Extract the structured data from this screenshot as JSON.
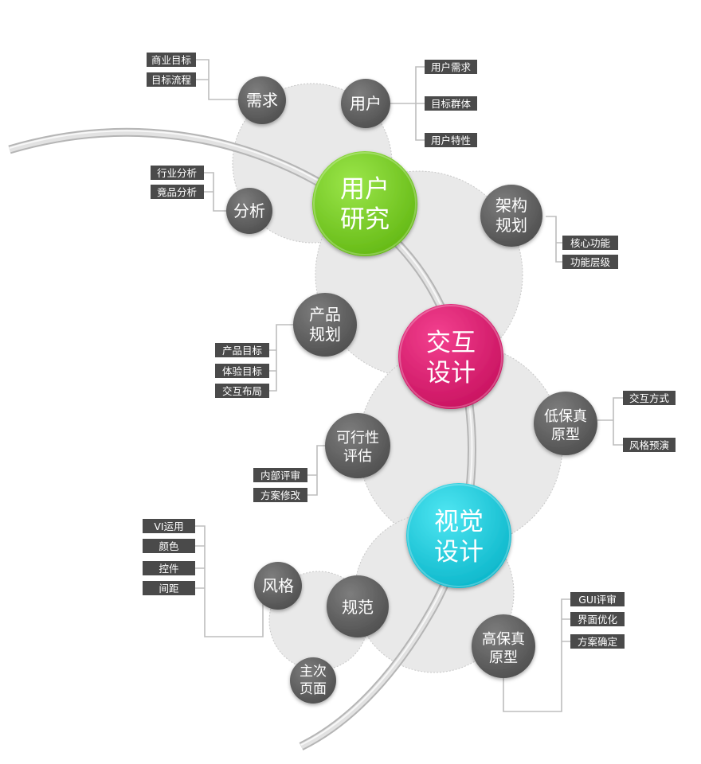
{
  "main_nodes": {
    "research": {
      "label_lines": [
        "用户",
        "研究"
      ],
      "color": "#7ed321"
    },
    "interaction": {
      "label_lines": [
        "交互",
        "设计"
      ],
      "color": "#e91e75"
    },
    "visual": {
      "label_lines": [
        "视觉",
        "设计"
      ],
      "color": "#16d3e6"
    }
  },
  "nodes": {
    "demand": {
      "label_lines": [
        "需求"
      ]
    },
    "user": {
      "label_lines": [
        "用户"
      ]
    },
    "analysis": {
      "label_lines": [
        "分析"
      ]
    },
    "architecture": {
      "label_lines": [
        "架构",
        "规划"
      ]
    },
    "product_plan": {
      "label_lines": [
        "产品",
        "规划"
      ]
    },
    "low_fi": {
      "label_lines": [
        "低保真",
        "原型"
      ]
    },
    "feasibility": {
      "label_lines": [
        "可行性",
        "评估"
      ]
    },
    "style": {
      "label_lines": [
        "风格"
      ]
    },
    "spec": {
      "label_lines": [
        "规范"
      ]
    },
    "main_page": {
      "label_lines": [
        "主次",
        "页面"
      ]
    },
    "high_fi": {
      "label_lines": [
        "高保真",
        "原型"
      ]
    }
  },
  "tags": {
    "demand": [
      "商业目标",
      "目标流程"
    ],
    "user": [
      "用户需求",
      "目标群体",
      "用户特性"
    ],
    "analysis": [
      "行业分析",
      "竟品分析"
    ],
    "architecture": [
      "核心功能",
      "功能层级"
    ],
    "product_plan": [
      "产品目标",
      "体验目标",
      "交互布局"
    ],
    "low_fi": [
      "交互方式",
      "风格预演"
    ],
    "feasibility": [
      "内部评审",
      "方案修改"
    ],
    "style": [
      "VI运用",
      "颜色",
      "控件",
      "间距"
    ],
    "high_fi": [
      "GUI评审",
      "界面优化",
      "方案确定"
    ]
  },
  "colors": {
    "node_gray": "#666666",
    "tag_bg": "#4a4a4a",
    "halo": "#e9e9e9",
    "connector": "#bdbdbd"
  }
}
